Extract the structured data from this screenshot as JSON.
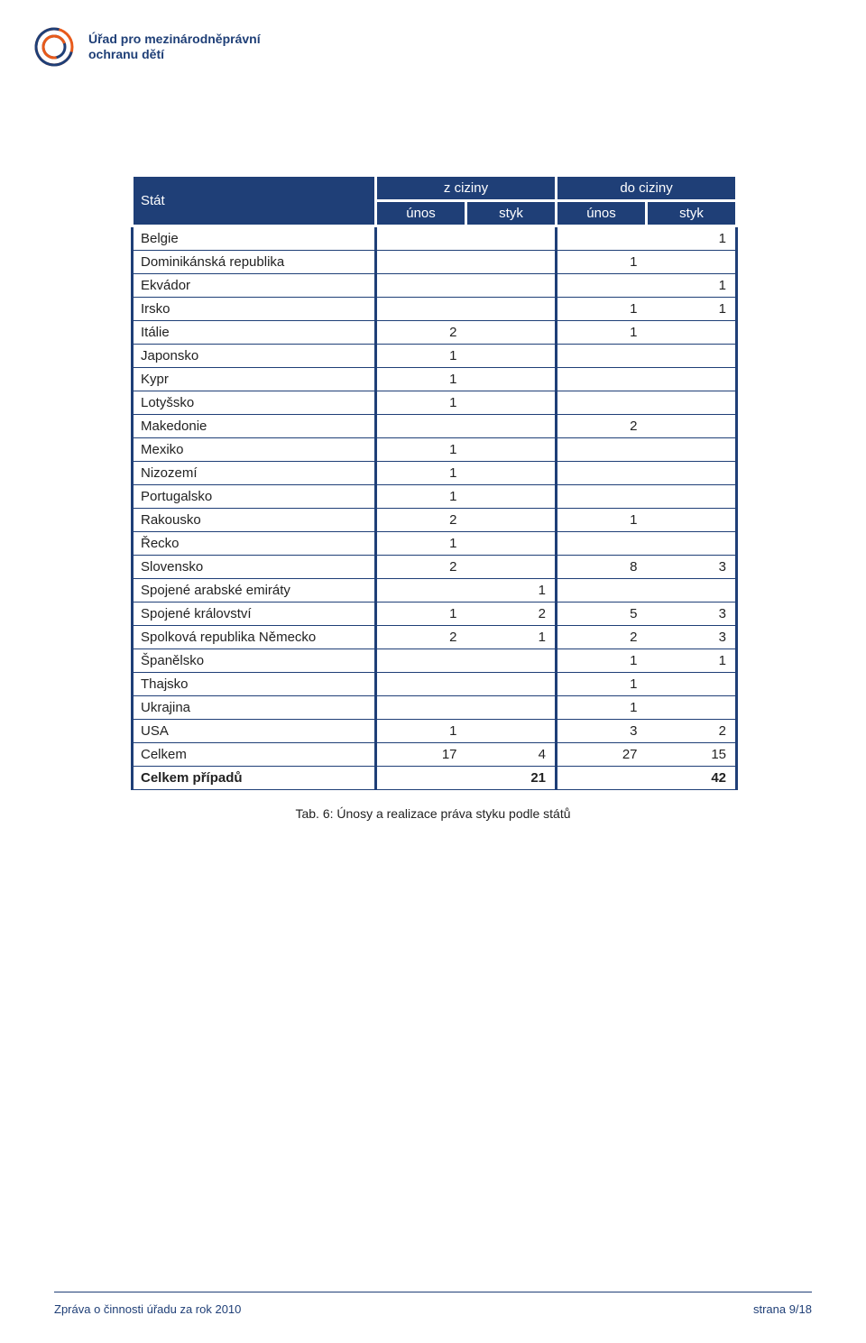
{
  "header": {
    "org_line1": "Úřad pro mezinárodněprávní",
    "org_line2": "ochranu dětí",
    "logo_colors": {
      "outer": "#e85a1a",
      "inner": "#1f3f77"
    }
  },
  "table": {
    "colors": {
      "header_bg": "#1f3f77",
      "header_text": "#ffffff",
      "border": "#1f3f77",
      "white": "#ffffff"
    },
    "columns": {
      "state_label": "Stát",
      "group_from": "z ciziny",
      "group_to": "do ciziny",
      "sub_unos": "únos",
      "sub_styk": "styk"
    },
    "rows": [
      {
        "state": "Belgie",
        "v": [
          "",
          "",
          "",
          "1"
        ]
      },
      {
        "state": "Dominikánská republika",
        "v": [
          "",
          "",
          "1",
          ""
        ]
      },
      {
        "state": "Ekvádor",
        "v": [
          "",
          "",
          "",
          "1"
        ]
      },
      {
        "state": "Irsko",
        "v": [
          "",
          "",
          "1",
          "1"
        ]
      },
      {
        "state": "Itálie",
        "v": [
          "2",
          "",
          "1",
          ""
        ]
      },
      {
        "state": "Japonsko",
        "v": [
          "1",
          "",
          "",
          ""
        ]
      },
      {
        "state": "Kypr",
        "v": [
          "1",
          "",
          "",
          ""
        ]
      },
      {
        "state": "Lotyšsko",
        "v": [
          "1",
          "",
          "",
          ""
        ]
      },
      {
        "state": "Makedonie",
        "v": [
          "",
          "",
          "2",
          ""
        ]
      },
      {
        "state": "Mexiko",
        "v": [
          "1",
          "",
          "",
          ""
        ]
      },
      {
        "state": "Nizozemí",
        "v": [
          "1",
          "",
          "",
          ""
        ]
      },
      {
        "state": "Portugalsko",
        "v": [
          "1",
          "",
          "",
          ""
        ]
      },
      {
        "state": "Rakousko",
        "v": [
          "2",
          "",
          "1",
          ""
        ]
      },
      {
        "state": "Řecko",
        "v": [
          "1",
          "",
          "",
          ""
        ]
      },
      {
        "state": "Slovensko",
        "v": [
          "2",
          "",
          "8",
          "3"
        ]
      },
      {
        "state": "Spojené arabské emiráty",
        "v": [
          "",
          "1",
          "",
          ""
        ]
      },
      {
        "state": "Spojené království",
        "v": [
          "1",
          "2",
          "5",
          "3"
        ]
      },
      {
        "state": "Spolková republika Německo",
        "v": [
          "2",
          "1",
          "2",
          "3"
        ]
      },
      {
        "state": "Španělsko",
        "v": [
          "",
          "",
          "1",
          "1"
        ]
      },
      {
        "state": "Thajsko",
        "v": [
          "",
          "",
          "1",
          ""
        ]
      },
      {
        "state": "Ukrajina",
        "v": [
          "",
          "",
          "1",
          ""
        ]
      },
      {
        "state": "USA",
        "v": [
          "1",
          "",
          "3",
          "2"
        ]
      }
    ],
    "totals": {
      "label_sum": "Celkem",
      "sum": [
        "17",
        "4",
        "27",
        "15"
      ],
      "label_cases": "Celkem případů",
      "cases": [
        "21",
        "42"
      ]
    },
    "caption": "Tab. 6: Únosy a realizace práva styku podle států"
  },
  "footer": {
    "left": "Zpráva o činnosti úřadu za rok 2010",
    "right": "strana 9/18"
  }
}
